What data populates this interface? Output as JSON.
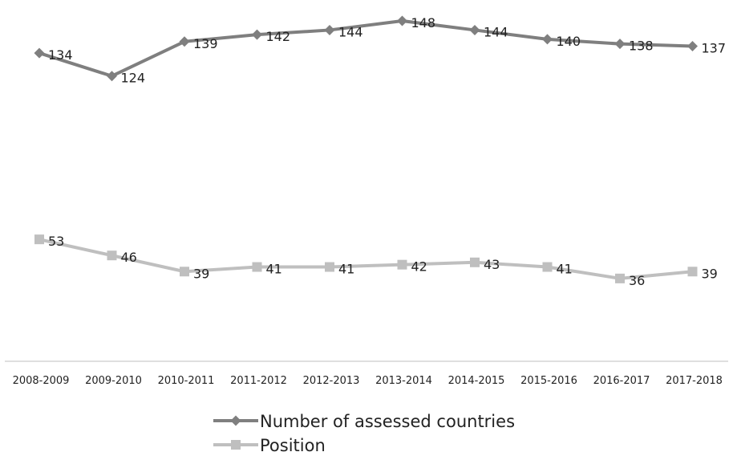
{
  "chart_data": {
    "type": "line",
    "title": "",
    "xlabel": "",
    "ylabel": "",
    "categories": [
      "2008-2009",
      "2009-2010",
      "2010-2011",
      "2011-2012",
      "2012-2013",
      "2013-2014",
      "2014-2015",
      "2015-2016",
      "2016-2017",
      "2017-2018"
    ],
    "series": [
      {
        "name": "Number of assessed countries",
        "values": [
          134,
          124,
          139,
          142,
          144,
          148,
          144,
          140,
          138,
          137
        ],
        "color": "#7f7f7f",
        "marker": "diamond"
      },
      {
        "name": "Position",
        "values": [
          53,
          46,
          39,
          41,
          41,
          42,
          43,
          41,
          36,
          39
        ],
        "color": "#bfbfbf",
        "marker": "square"
      }
    ],
    "ylim": [
      0,
      150
    ],
    "grid": false,
    "legend": "bottom",
    "axis_color": "#bfbfbf"
  }
}
